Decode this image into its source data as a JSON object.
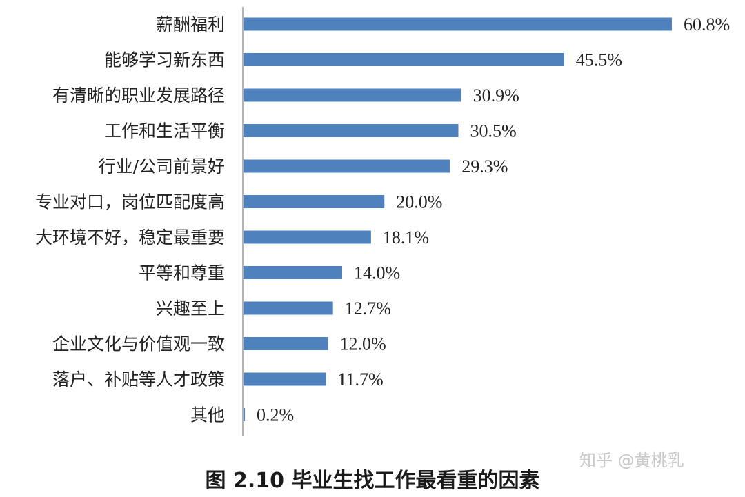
{
  "chart_data": {
    "type": "bar",
    "orientation": "horizontal",
    "categories": [
      "薪酬福利",
      "能够学习新东西",
      "有清晰的职业发展路径",
      "工作和生活平衡",
      "行业/公司前景好",
      "专业对口，岗位匹配度高",
      "大环境不好，稳定最重要",
      "平等和尊重",
      "兴趣至上",
      "企业文化与价值观一致",
      "落户、补贴等人才政策",
      "其他"
    ],
    "values": [
      60.8,
      45.5,
      30.9,
      30.5,
      29.3,
      20.0,
      18.1,
      14.0,
      12.7,
      12.0,
      11.7,
      0.2
    ],
    "value_labels": [
      "60.8%",
      "45.5%",
      "30.9%",
      "30.5%",
      "29.3%",
      "20.0%",
      "18.1%",
      "14.0%",
      "12.7%",
      "12.0%",
      "11.7%",
      "0.2%"
    ],
    "xlim": [
      0,
      61
    ],
    "bar_color": "#4f81bd",
    "grid": false,
    "legend": "none"
  },
  "caption": "图 2.10  毕业生找工作最看重的因素",
  "watermark": "知乎 @黄桃乳"
}
